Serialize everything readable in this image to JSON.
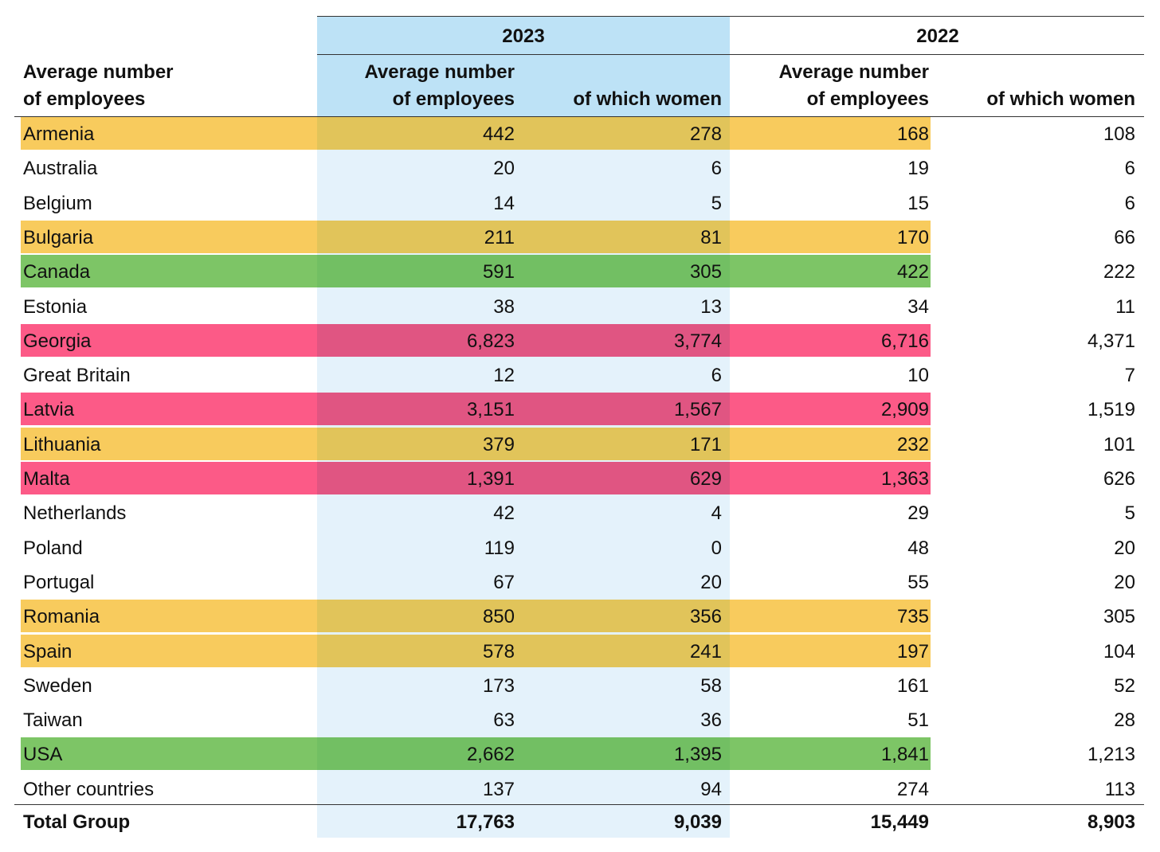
{
  "header": {
    "corner_line1": "Average number",
    "corner_line2": "of employees",
    "year_2023": "2023",
    "year_2022": "2022",
    "avg_line1": "Average number",
    "avg_line2": "of employees",
    "women": "of which women"
  },
  "colors": {
    "col_2023_header": "#bde2f6",
    "col_2023_body": "#e4f2fb",
    "orange": "#f8cb5d",
    "orange_dark": "#e1c45a",
    "green": "#7dc566",
    "green_dark": "#72bf63",
    "red": "#fc5a87",
    "red_dark": "#e05582"
  },
  "rows": [
    {
      "country": "Armenia",
      "avg_2023": "442",
      "women_2023": "278",
      "avg_2022": "168",
      "women_2022": "108",
      "highlight": "orange"
    },
    {
      "country": "Australia",
      "avg_2023": "20",
      "women_2023": "6",
      "avg_2022": "19",
      "women_2022": "6",
      "highlight": "none"
    },
    {
      "country": "Belgium",
      "avg_2023": "14",
      "women_2023": "5",
      "avg_2022": "15",
      "women_2022": "6",
      "highlight": "none"
    },
    {
      "country": "Bulgaria",
      "avg_2023": "211",
      "women_2023": "81",
      "avg_2022": "170",
      "women_2022": "66",
      "highlight": "orange"
    },
    {
      "country": "Canada",
      "avg_2023": "591",
      "women_2023": "305",
      "avg_2022": "422",
      "women_2022": "222",
      "highlight": "green"
    },
    {
      "country": "Estonia",
      "avg_2023": "38",
      "women_2023": "13",
      "avg_2022": "34",
      "women_2022": "11",
      "highlight": "none"
    },
    {
      "country": "Georgia",
      "avg_2023": "6,823",
      "women_2023": "3,774",
      "avg_2022": "6,716",
      "women_2022": "4,371",
      "highlight": "red"
    },
    {
      "country": "Great Britain",
      "avg_2023": "12",
      "women_2023": "6",
      "avg_2022": "10",
      "women_2022": "7",
      "highlight": "none"
    },
    {
      "country": "Latvia",
      "avg_2023": "3,151",
      "women_2023": "1,567",
      "avg_2022": "2,909",
      "women_2022": "1,519",
      "highlight": "red"
    },
    {
      "country": "Lithuania",
      "avg_2023": "379",
      "women_2023": "171",
      "avg_2022": "232",
      "women_2022": "101",
      "highlight": "orange"
    },
    {
      "country": "Malta",
      "avg_2023": "1,391",
      "women_2023": "629",
      "avg_2022": "1,363",
      "women_2022": "626",
      "highlight": "red"
    },
    {
      "country": "Netherlands",
      "avg_2023": "42",
      "women_2023": "4",
      "avg_2022": "29",
      "women_2022": "5",
      "highlight": "none"
    },
    {
      "country": "Poland",
      "avg_2023": "119",
      "women_2023": "0",
      "avg_2022": "48",
      "women_2022": "20",
      "highlight": "none"
    },
    {
      "country": "Portugal",
      "avg_2023": "67",
      "women_2023": "20",
      "avg_2022": "55",
      "women_2022": "20",
      "highlight": "none"
    },
    {
      "country": "Romania",
      "avg_2023": "850",
      "women_2023": "356",
      "avg_2022": "735",
      "women_2022": "305",
      "highlight": "orange"
    },
    {
      "country": "Spain",
      "avg_2023": "578",
      "women_2023": "241",
      "avg_2022": "197",
      "women_2022": "104",
      "highlight": "orange"
    },
    {
      "country": "Sweden",
      "avg_2023": "173",
      "women_2023": "58",
      "avg_2022": "161",
      "women_2022": "52",
      "highlight": "none"
    },
    {
      "country": "Taiwan",
      "avg_2023": "63",
      "women_2023": "36",
      "avg_2022": "51",
      "women_2022": "28",
      "highlight": "none"
    },
    {
      "country": "USA",
      "avg_2023": "2,662",
      "women_2023": "1,395",
      "avg_2022": "1,841",
      "women_2022": "1,213",
      "highlight": "green"
    },
    {
      "country": "Other countries",
      "avg_2023": "137",
      "women_2023": "94",
      "avg_2022": "274",
      "women_2022": "113",
      "highlight": "none"
    }
  ],
  "total": {
    "country": "Total Group",
    "avg_2023": "17,763",
    "women_2023": "9,039",
    "avg_2022": "15,449",
    "women_2022": "8,903"
  }
}
